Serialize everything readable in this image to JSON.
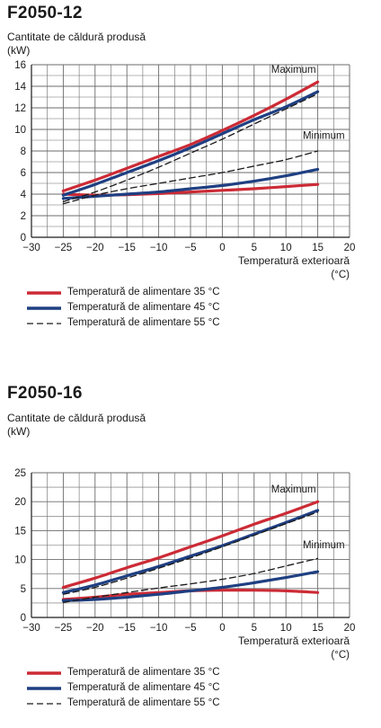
{
  "charts": [
    {
      "model": "F2050-12",
      "ylabel": "Cantitate de căldură produsă",
      "yunit": "(kW)",
      "xlabel": "Temperatură exterioară",
      "xunit": "(°C)",
      "annotations": {
        "max": "Maximum",
        "min": "Minimum"
      },
      "legend": [
        {
          "label": "Temperatură de alimentare 35 °C"
        },
        {
          "label": "Temperatură de alimentare 45 °C"
        },
        {
          "label": "Temperatură de alimentare 55 °C"
        }
      ]
    },
    {
      "model": "F2050-16",
      "ylabel": "Cantitate de căldură produsă",
      "yunit": "(kW)",
      "xlabel": "Temperatură exterioară",
      "xunit": "(°C)",
      "annotations": {
        "max": "Maximum",
        "min": "Minimum"
      },
      "legend": [
        {
          "label": "Temperatură de alimentare 35 °C"
        },
        {
          "label": "Temperatură de alimentare 45 °C"
        },
        {
          "label": "Temperatură de alimentare 55 °C"
        }
      ]
    }
  ],
  "colors": {
    "supply_35": "#cc2b36",
    "supply_45": "#1f3f82",
    "supply_55": "#1a1a1a",
    "grid": "#6b6b6b"
  },
  "chart_data": [
    {
      "type": "line",
      "title": "F2050-12",
      "xlabel": "Temperatură exterioară (°C)",
      "ylabel": "Cantitate de căldură produsă (kW)",
      "xlim": [
        -30,
        20
      ],
      "ylim": [
        0,
        16
      ],
      "xticks": [
        -30,
        -25,
        -20,
        -15,
        -10,
        -5,
        0,
        5,
        10,
        15,
        20
      ],
      "yticks": [
        0,
        2,
        4,
        6,
        8,
        10,
        12,
        14,
        16
      ],
      "grid": true,
      "series": [
        {
          "name": "Temperatură de alimentare 35 °C",
          "curve": "Maximum",
          "style": "solid",
          "x": [
            -25,
            -20,
            -15,
            -10,
            -5,
            0,
            5,
            10,
            15
          ],
          "y": [
            4.3,
            5.3,
            6.4,
            7.5,
            8.6,
            9.9,
            11.3,
            12.8,
            14.4
          ]
        },
        {
          "name": "Temperatură de alimentare 35 °C",
          "curve": "Minimum",
          "style": "solid",
          "x": [
            -25,
            -20,
            -15,
            -10,
            -5,
            0,
            5,
            10,
            15
          ],
          "y": [
            4.0,
            3.9,
            3.95,
            4.05,
            4.2,
            4.35,
            4.5,
            4.7,
            4.9
          ]
        },
        {
          "name": "Temperatură de alimentare 45 °C",
          "curve": "Maximum",
          "style": "solid",
          "x": [
            -25,
            -20,
            -15,
            -10,
            -5,
            0,
            5,
            10,
            15
          ],
          "y": [
            3.9,
            4.9,
            6.0,
            7.1,
            8.3,
            9.6,
            10.9,
            12.1,
            13.5
          ]
        },
        {
          "name": "Temperatură de alimentare 45 °C",
          "curve": "Minimum",
          "style": "solid",
          "x": [
            -25,
            -20,
            -15,
            -10,
            -5,
            0,
            5,
            10,
            15
          ],
          "y": [
            3.6,
            3.8,
            4.0,
            4.2,
            4.5,
            4.8,
            5.2,
            5.7,
            6.3
          ]
        },
        {
          "name": "Temperatură de alimentare 55 °C",
          "curve": "Maximum",
          "style": "dashed",
          "x": [
            -25,
            -20,
            -15,
            -10,
            -5,
            0,
            5,
            10,
            15
          ],
          "y": [
            3.3,
            4.2,
            5.3,
            6.5,
            7.8,
            9.1,
            10.5,
            11.9,
            13.3
          ]
        },
        {
          "name": "Temperatură de alimentare 55 °C",
          "curve": "Minimum",
          "style": "dashed",
          "x": [
            -25,
            -20,
            -15,
            -10,
            -5,
            0,
            5,
            10,
            15
          ],
          "y": [
            3.1,
            3.9,
            4.5,
            5.0,
            5.5,
            6.0,
            6.6,
            7.2,
            8.0
          ]
        }
      ]
    },
    {
      "type": "line",
      "title": "F2050-16",
      "xlabel": "Temperatură exterioară (°C)",
      "ylabel": "Cantitate de căldură produsă (kW)",
      "xlim": [
        -30,
        20
      ],
      "ylim": [
        0,
        25
      ],
      "xticks": [
        -30,
        -25,
        -20,
        -15,
        -10,
        -5,
        0,
        5,
        10,
        15,
        20
      ],
      "yticks": [
        0,
        5,
        10,
        15,
        20,
        25
      ],
      "grid": true,
      "series": [
        {
          "name": "Temperatură de alimentare 35 °C",
          "curve": "Maximum",
          "style": "solid",
          "x": [
            -25,
            -20,
            -15,
            -10,
            -5,
            0,
            5,
            10,
            15
          ],
          "y": [
            5.2,
            6.8,
            8.6,
            10.3,
            12.2,
            14.1,
            16.1,
            18.0,
            20.0
          ]
        },
        {
          "name": "Temperatură de alimentare 35 °C",
          "curve": "Minimum",
          "style": "solid",
          "x": [
            -25,
            -20,
            -15,
            -10,
            -5,
            0,
            5,
            10,
            15
          ],
          "y": [
            3.1,
            3.5,
            4.0,
            4.3,
            4.6,
            4.7,
            4.7,
            4.6,
            4.3
          ]
        },
        {
          "name": "Temperatură de alimentare 45 °C",
          "curve": "Maximum",
          "style": "solid",
          "x": [
            -25,
            -20,
            -15,
            -10,
            -5,
            0,
            5,
            10,
            15
          ],
          "y": [
            4.3,
            5.6,
            7.2,
            8.8,
            10.6,
            12.4,
            14.4,
            16.4,
            18.5
          ]
        },
        {
          "name": "Temperatură de alimentare 45 °C",
          "curve": "Minimum",
          "style": "solid",
          "x": [
            -25,
            -20,
            -15,
            -10,
            -5,
            0,
            5,
            10,
            15
          ],
          "y": [
            2.9,
            3.1,
            3.5,
            4.0,
            4.6,
            5.2,
            6.0,
            6.9,
            7.9
          ]
        },
        {
          "name": "Temperatură de alimentare 55 °C",
          "curve": "Maximum",
          "style": "dashed",
          "x": [
            -25,
            -20,
            -15,
            -10,
            -5,
            0,
            5,
            10,
            15
          ],
          "y": [
            4.0,
            5.2,
            6.8,
            8.5,
            10.3,
            12.2,
            14.2,
            16.2,
            18.2
          ]
        },
        {
          "name": "Temperatură de alimentare 55 °C",
          "curve": "Minimum",
          "style": "dashed",
          "x": [
            -25,
            -20,
            -15,
            -10,
            -5,
            0,
            5,
            10,
            15
          ],
          "y": [
            2.6,
            3.5,
            4.3,
            5.1,
            5.8,
            6.6,
            7.6,
            8.9,
            10.2
          ]
        }
      ]
    }
  ]
}
